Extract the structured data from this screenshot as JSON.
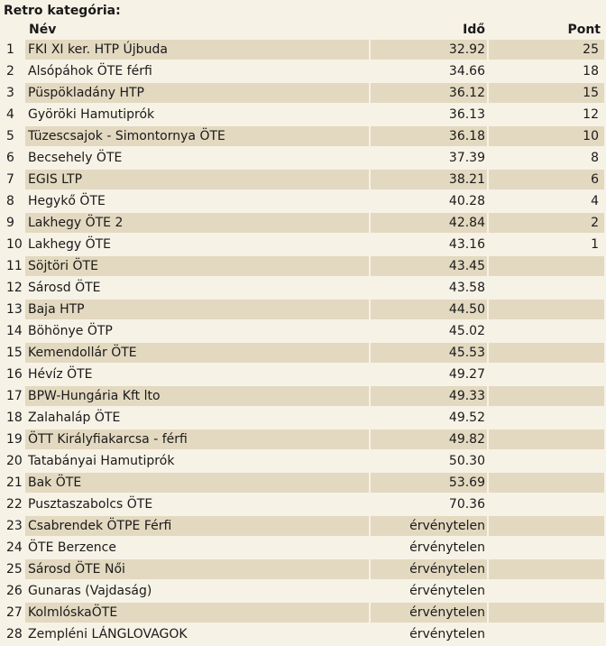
{
  "category_title": "Retro kategória:",
  "headers": {
    "name": "Név",
    "time": "Idő",
    "points": "Pont"
  },
  "rows": [
    {
      "rank": "1",
      "name": "FKI XI ker. HTP Újbuda",
      "time": "32.92",
      "points": "25"
    },
    {
      "rank": "2",
      "name": "Alsópáhok ÖTE férfi",
      "time": "34.66",
      "points": "18"
    },
    {
      "rank": "3",
      "name": "Püspökladány HTP",
      "time": "36.12",
      "points": "15"
    },
    {
      "rank": "4",
      "name": "Györöki Hamutiprók",
      "time": "36.13",
      "points": "12"
    },
    {
      "rank": "5",
      "name": "Tüzescsajok - Simontornya ÖTE",
      "time": "36.18",
      "points": "10"
    },
    {
      "rank": "6",
      "name": "Becsehely ÖTE",
      "time": "37.39",
      "points": "8"
    },
    {
      "rank": "7",
      "name": "EGIS LTP",
      "time": "38.21",
      "points": "6"
    },
    {
      "rank": "8",
      "name": "Hegykő ÖTE",
      "time": "40.28",
      "points": "4"
    },
    {
      "rank": "9",
      "name": "Lakhegy ÖTE 2",
      "time": "42.84",
      "points": "2"
    },
    {
      "rank": "10",
      "name": "Lakhegy ÖTE",
      "time": "43.16",
      "points": "1"
    },
    {
      "rank": "11",
      "name": "Söjtöri ÖTE",
      "time": "43.45",
      "points": ""
    },
    {
      "rank": "12",
      "name": "Sárosd ÖTE",
      "time": "43.58",
      "points": ""
    },
    {
      "rank": "13",
      "name": "Baja HTP",
      "time": "44.50",
      "points": ""
    },
    {
      "rank": "14",
      "name": "Böhönye ÖTP",
      "time": "45.02",
      "points": ""
    },
    {
      "rank": "15",
      "name": "Kemendollár ÖTE",
      "time": "45.53",
      "points": ""
    },
    {
      "rank": "16",
      "name": "Hévíz ÖTE",
      "time": "49.27",
      "points": ""
    },
    {
      "rank": "17",
      "name": "BPW-Hungária Kft lto",
      "time": "49.33",
      "points": ""
    },
    {
      "rank": "18",
      "name": "Zalahaláp ÖTE",
      "time": "49.52",
      "points": ""
    },
    {
      "rank": "19",
      "name": "ÖTT Királyfiakarcsa - férfi",
      "time": "49.82",
      "points": ""
    },
    {
      "rank": "20",
      "name": "Tatabányai Hamutiprók",
      "time": "50.30",
      "points": ""
    },
    {
      "rank": "21",
      "name": "Bak ÖTE",
      "time": "53.69",
      "points": ""
    },
    {
      "rank": "22",
      "name": "Pusztaszabolcs ÖTE",
      "time": "70.36",
      "points": ""
    },
    {
      "rank": "23",
      "name": "Csabrendek ÖTPE Férfi",
      "time": "érvénytelen",
      "points": ""
    },
    {
      "rank": "24",
      "name": "ÖTE Berzence",
      "time": "érvénytelen",
      "points": ""
    },
    {
      "rank": "25",
      "name": "Sárosd ÖTE Női",
      "time": "érvénytelen",
      "points": ""
    },
    {
      "rank": "26",
      "name": "Gunaras (Vajdaság)",
      "time": "érvénytelen",
      "points": ""
    },
    {
      "rank": "27",
      "name": "KolmlóskaÖTE",
      "time": "érvénytelen",
      "points": ""
    },
    {
      "rank": "28",
      "name": "Zempléni LÁNGLOVAGOK",
      "time": "érvénytelen",
      "points": ""
    }
  ],
  "colors": {
    "background": "#f7f2e6",
    "row_shade": "#e3d9c0"
  }
}
